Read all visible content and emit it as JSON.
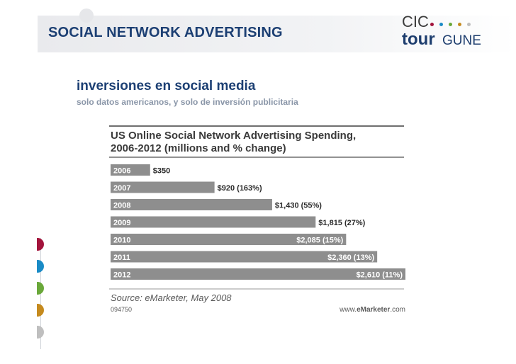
{
  "slide": {
    "title": "SOCIAL NETWORK ADVERTISING",
    "subtitle": "inversiones en social media",
    "note": "solo datos americanos, y solo de inversión publicitaria"
  },
  "logo": {
    "top": "CIC",
    "brand": "tour",
    "brand_suffix": "GUNE",
    "dot_colors": [
      "#a3143c",
      "#1a8bc6",
      "#6aa83a",
      "#c58a1e",
      "#bfbfbf"
    ]
  },
  "accent_colors": [
    "#a3143c",
    "#1a8bc6",
    "#6aa83a",
    "#c58a1e",
    "#bfbfbf"
  ],
  "chart_data": {
    "type": "bar",
    "orientation": "horizontal",
    "title_line1": "US Online Social Network Advertising Spending,",
    "title_line2": "2006-2012 (millions and % change)",
    "categories": [
      "2006",
      "2007",
      "2008",
      "2009",
      "2010",
      "2011",
      "2012"
    ],
    "values": [
      350,
      920,
      1430,
      1815,
      2085,
      2360,
      2610
    ],
    "labels": [
      "$350",
      "$920 (163%)",
      "$1,430 (55%)",
      "$1,815 (27%)",
      "$2,085 (15%)",
      "$2,360 (13%)",
      "$2,610 (11%)"
    ],
    "source": "Source: eMarketer, May 2008",
    "chart_id": "094750",
    "brand_prefix": "www.",
    "brand_name": "eMarketer",
    "brand_suffix": ".com",
    "bar_color": "#8e8e8e",
    "title_color": "#3a3a3a",
    "grid": false,
    "legend": "none"
  }
}
